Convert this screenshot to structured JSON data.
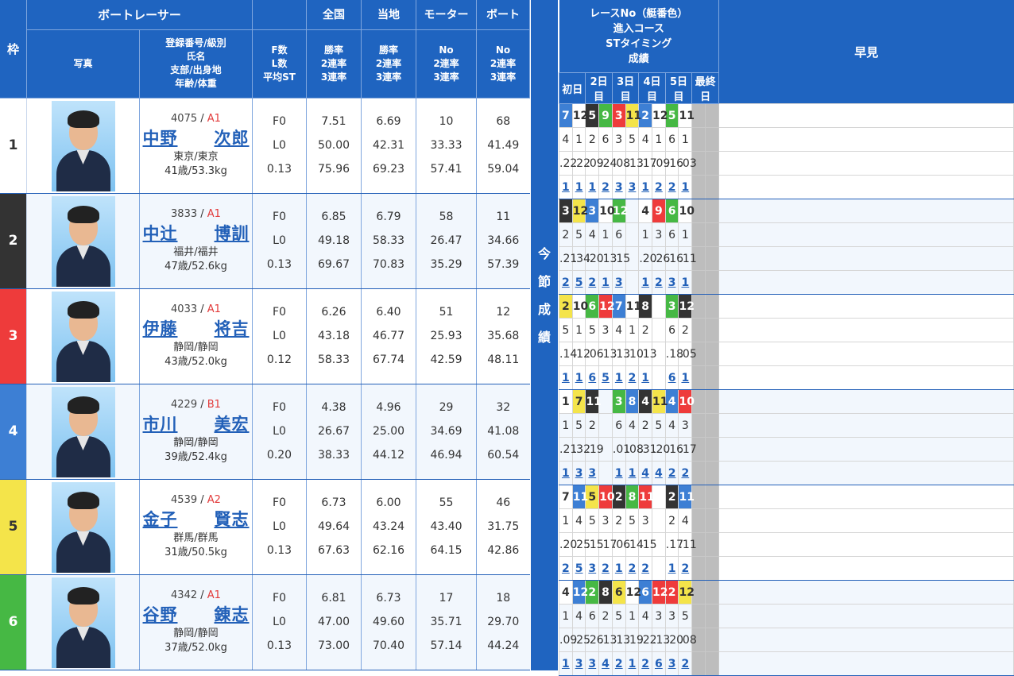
{
  "header": {
    "waku": "枠",
    "racer_group": "ボートレーサー",
    "photo": "写真",
    "info_lines": [
      "登録番号/級別",
      "氏名",
      "支部/出身地",
      "年齢/体重"
    ],
    "fl_lines": [
      "F数",
      "L数",
      "平均ST"
    ],
    "zenkoku": "全国",
    "touchi": "当地",
    "motor": "モーター",
    "boat": "ボート",
    "rate_lines": [
      "勝率",
      "2連率",
      "3連率"
    ],
    "no_lines": [
      "No",
      "2連率",
      "3連率"
    ]
  },
  "middle_label": [
    "今",
    "節",
    "成",
    "績"
  ],
  "right_header": {
    "lines": [
      "レースNo（艇番色）",
      "進入コース",
      "STタイミング",
      "成績"
    ],
    "days": [
      "初日",
      "2日目",
      "3日目",
      "4日目",
      "5日目",
      "最終日"
    ],
    "hayami": "早見"
  },
  "frame_colors": [
    "#ffffff",
    "#333333",
    "#ee3b3b",
    "#3d7fd4",
    "#f4e44a",
    "#46b844"
  ],
  "racers": [
    {
      "waku": "1",
      "reg": "4075",
      "cls": "A1",
      "name": [
        "中野",
        "次郎"
      ],
      "branch": "東京/東京",
      "age": "41歳/53.3kg",
      "f": "F0",
      "l": "L0",
      "st": "0.13",
      "zen": [
        "7.51",
        "50.00",
        "75.96"
      ],
      "tou": [
        "6.69",
        "42.31",
        "69.23"
      ],
      "mot": [
        "10",
        "33.33",
        "57.41"
      ],
      "bot": [
        "68",
        "41.49",
        "59.04"
      ],
      "races": [
        {
          "r": "7",
          "c": "b4",
          "co": "4",
          "st": ".22",
          "res": "1"
        },
        {
          "r": "12",
          "c": "b1",
          "co": "1",
          "st": ".22",
          "res": "1"
        },
        {
          "r": "5",
          "c": "b2",
          "co": "2",
          "st": ".09",
          "res": "1"
        },
        {
          "r": "9",
          "c": "b6",
          "co": "6",
          "st": ".24",
          "res": "2"
        },
        {
          "r": "3",
          "c": "b3",
          "co": "3",
          "st": ".08",
          "res": "3"
        },
        {
          "r": "11",
          "c": "b5",
          "co": "5",
          "st": ".13",
          "res": "3"
        },
        {
          "r": "2",
          "c": "b4",
          "co": "4",
          "st": ".17",
          "res": "1"
        },
        {
          "r": "12",
          "c": "b1",
          "co": "1",
          "st": ".09",
          "res": "2"
        },
        {
          "r": "5",
          "c": "b6",
          "co": "6",
          "st": ".16",
          "res": "2"
        },
        {
          "r": "11",
          "c": "b1",
          "co": "1",
          "st": ".03",
          "res": "1"
        }
      ]
    },
    {
      "waku": "2",
      "reg": "3833",
      "cls": "A1",
      "name": [
        "中辻",
        "博訓"
      ],
      "branch": "福井/福井",
      "age": "47歳/52.6kg",
      "f": "F0",
      "l": "L0",
      "st": "0.13",
      "zen": [
        "6.85",
        "49.18",
        "69.67"
      ],
      "tou": [
        "6.79",
        "58.33",
        "70.83"
      ],
      "mot": [
        "58",
        "26.47",
        "35.29"
      ],
      "bot": [
        "11",
        "34.66",
        "57.39"
      ],
      "races": [
        {
          "r": "3",
          "c": "b2",
          "co": "2",
          "st": ".21",
          "res": "2"
        },
        {
          "r": "12",
          "c": "b5",
          "co": "5",
          "st": ".34",
          "res": "5"
        },
        {
          "r": "3",
          "c": "b4",
          "co": "4",
          "st": ".20",
          "res": "2"
        },
        {
          "r": "10",
          "c": "b1",
          "co": "1",
          "st": ".13",
          "res": "1"
        },
        {
          "r": "12",
          "c": "b6",
          "co": "6",
          "st": ".15",
          "res": "3"
        },
        {
          "r": "",
          "c": "",
          "co": "",
          "st": "",
          "res": ""
        },
        {
          "r": "4",
          "c": "b1",
          "co": "1",
          "st": ".20",
          "res": "1"
        },
        {
          "r": "9",
          "c": "b3",
          "co": "3",
          "st": ".26",
          "res": "2"
        },
        {
          "r": "6",
          "c": "b6",
          "co": "6",
          "st": ".16",
          "res": "3"
        },
        {
          "r": "10",
          "c": "b1",
          "co": "1",
          "st": ".11",
          "res": "1"
        }
      ]
    },
    {
      "waku": "3",
      "reg": "4033",
      "cls": "A1",
      "name": [
        "伊藤",
        "将吉"
      ],
      "branch": "静岡/静岡",
      "age": "43歳/52.0kg",
      "f": "F0",
      "l": "L0",
      "st": "0.12",
      "zen": [
        "6.26",
        "43.18",
        "58.33"
      ],
      "tou": [
        "6.40",
        "46.77",
        "67.74"
      ],
      "mot": [
        "51",
        "25.93",
        "42.59"
      ],
      "bot": [
        "12",
        "35.68",
        "48.11"
      ],
      "races": [
        {
          "r": "2",
          "c": "b5",
          "co": "5",
          "st": ".14",
          "res": "1"
        },
        {
          "r": "10",
          "c": "b1",
          "co": "1",
          "st": ".12",
          "res": "1"
        },
        {
          "r": "6",
          "c": "b6",
          "co": "5",
          "st": ".06",
          "res": "6"
        },
        {
          "r": "12",
          "c": "b3",
          "co": "3",
          "st": ".13",
          "res": "5"
        },
        {
          "r": "7",
          "c": "b4",
          "co": "4",
          "st": ".13",
          "res": "1"
        },
        {
          "r": "11",
          "c": "b1",
          "co": "1",
          "st": ".10",
          "res": "2"
        },
        {
          "r": "8",
          "c": "b2",
          "co": "2",
          "st": ".13",
          "res": "1"
        },
        {
          "r": "",
          "c": "",
          "co": "",
          "st": "",
          "res": ""
        },
        {
          "r": "3",
          "c": "b6",
          "co": "6",
          "st": ".18",
          "res": "6"
        },
        {
          "r": "12",
          "c": "b2",
          "co": "2",
          "st": ".05",
          "res": "1"
        }
      ]
    },
    {
      "waku": "4",
      "reg": "4229",
      "cls": "B1",
      "name": [
        "市川",
        "美宏"
      ],
      "branch": "静岡/静岡",
      "age": "39歳/52.4kg",
      "f": "F0",
      "l": "L0",
      "st": "0.20",
      "zen": [
        "4.38",
        "26.67",
        "38.33"
      ],
      "tou": [
        "4.96",
        "25.00",
        "44.12"
      ],
      "mot": [
        "29",
        "34.69",
        "46.94"
      ],
      "bot": [
        "32",
        "41.08",
        "60.54"
      ],
      "races": [
        {
          "r": "1",
          "c": "b1",
          "co": "1",
          "st": ".21",
          "res": "1"
        },
        {
          "r": "7",
          "c": "b5",
          "co": "5",
          "st": ".32",
          "res": "3"
        },
        {
          "r": "11",
          "c": "b2",
          "co": "2",
          "st": ".19",
          "res": "3"
        },
        {
          "r": "",
          "c": "",
          "co": "",
          "st": "",
          "res": ""
        },
        {
          "r": "3",
          "c": "b6",
          "co": "6",
          "st": ".01",
          "res": "1"
        },
        {
          "r": "8",
          "c": "b4",
          "co": "4",
          "st": ".08",
          "res": "1"
        },
        {
          "r": "4",
          "c": "b2",
          "co": "2",
          "st": ".31",
          "res": "4"
        },
        {
          "r": "11",
          "c": "b5",
          "co": "5",
          "st": ".20",
          "res": "4"
        },
        {
          "r": "4",
          "c": "b4",
          "co": "4",
          "st": ".16",
          "res": "2"
        },
        {
          "r": "10",
          "c": "b3",
          "co": "3",
          "st": ".17",
          "res": "2"
        }
      ]
    },
    {
      "waku": "5",
      "reg": "4539",
      "cls": "A2",
      "name": [
        "金子",
        "賢志"
      ],
      "branch": "群馬/群馬",
      "age": "31歳/50.5kg",
      "f": "F0",
      "l": "L0",
      "st": "0.13",
      "zen": [
        "6.73",
        "49.64",
        "67.63"
      ],
      "tou": [
        "6.00",
        "43.24",
        "62.16"
      ],
      "mot": [
        "55",
        "43.40",
        "64.15"
      ],
      "bot": [
        "46",
        "31.75",
        "42.86"
      ],
      "races": [
        {
          "r": "7",
          "c": "b1",
          "co": "1",
          "st": ".20",
          "res": "2"
        },
        {
          "r": "11",
          "c": "b4",
          "co": "4",
          "st": ".25",
          "res": "5"
        },
        {
          "r": "5",
          "c": "b5",
          "co": "5",
          "st": ".15",
          "res": "3"
        },
        {
          "r": "10",
          "c": "b3",
          "co": "3",
          "st": ".17",
          "res": "2"
        },
        {
          "r": "2",
          "c": "b2",
          "co": "2",
          "st": ".06",
          "res": "1"
        },
        {
          "r": "8",
          "c": "b6",
          "co": "5",
          "st": ".14",
          "res": "2"
        },
        {
          "r": "11",
          "c": "b3",
          "co": "3",
          "st": ".15",
          "res": "2"
        },
        {
          "r": "",
          "c": "",
          "co": "",
          "st": "",
          "res": ""
        },
        {
          "r": "2",
          "c": "b2",
          "co": "2",
          "st": ".17",
          "res": "1"
        },
        {
          "r": "11",
          "c": "b4",
          "co": "4",
          "st": ".11",
          "res": "2"
        }
      ]
    },
    {
      "waku": "6",
      "reg": "4342",
      "cls": "A1",
      "name": [
        "谷野",
        "錬志"
      ],
      "branch": "静岡/静岡",
      "age": "37歳/52.0kg",
      "f": "F0",
      "l": "L0",
      "st": "0.13",
      "zen": [
        "6.81",
        "47.00",
        "73.00"
      ],
      "tou": [
        "6.73",
        "49.60",
        "70.40"
      ],
      "mot": [
        "17",
        "35.71",
        "57.14"
      ],
      "bot": [
        "18",
        "29.70",
        "44.24"
      ],
      "races": [
        {
          "r": "4",
          "c": "b1",
          "co": "1",
          "st": ".09",
          "res": "1"
        },
        {
          "r": "12",
          "c": "b4",
          "co": "4",
          "st": ".25",
          "res": "3"
        },
        {
          "r": "2",
          "c": "b6",
          "co": "6",
          "st": ".26",
          "res": "3"
        },
        {
          "r": "8",
          "c": "b2",
          "co": "2",
          "st": ".13",
          "res": "4"
        },
        {
          "r": "6",
          "c": "b5",
          "co": "5",
          "st": ".13",
          "res": "2"
        },
        {
          "r": "12",
          "c": "b1",
          "co": "1",
          "st": ".19",
          "res": "1"
        },
        {
          "r": "6",
          "c": "b4",
          "co": "4",
          "st": ".22",
          "res": "2"
        },
        {
          "r": "12",
          "c": "b3",
          "co": "3",
          "st": ".13",
          "res": "6"
        },
        {
          "r": "2",
          "c": "b3",
          "co": "3",
          "st": ".20",
          "res": "3"
        },
        {
          "r": "12",
          "c": "b5",
          "co": "5",
          "st": ".08",
          "res": "2"
        }
      ]
    }
  ]
}
